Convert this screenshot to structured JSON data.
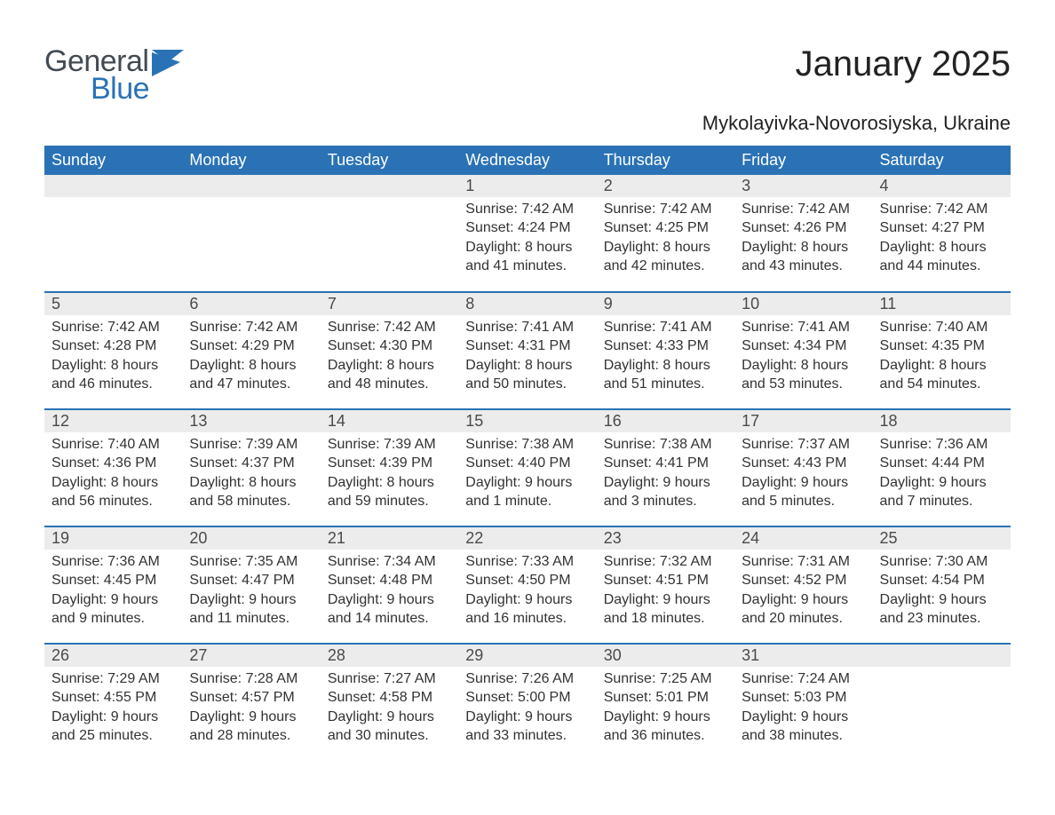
{
  "logo": {
    "word1": "General",
    "word2": "Blue"
  },
  "title": "January 2025",
  "subtitle": "Mykolayivka-Novorosiyska, Ukraine",
  "colors": {
    "header_bg": "#2a72b5",
    "header_text": "#ffffff",
    "daynum_bg": "#ececec",
    "daynum_text": "#4a4a4a",
    "border": "#2a72b5",
    "body_text": "#323232",
    "logo_gray": "#434b52",
    "logo_blue": "#2a72b5",
    "page_bg": "#ffffff"
  },
  "typography": {
    "title_fontsize": 40,
    "subtitle_fontsize": 22,
    "dayheader_fontsize": 18,
    "daynum_fontsize": 18,
    "body_fontsize": 16
  },
  "day_headers": [
    "Sunday",
    "Monday",
    "Tuesday",
    "Wednesday",
    "Thursday",
    "Friday",
    "Saturday"
  ],
  "weeks": [
    [
      {
        "n": "",
        "sr": "",
        "ss": "",
        "d1": "",
        "d2": ""
      },
      {
        "n": "",
        "sr": "",
        "ss": "",
        "d1": "",
        "d2": ""
      },
      {
        "n": "",
        "sr": "",
        "ss": "",
        "d1": "",
        "d2": ""
      },
      {
        "n": "1",
        "sr": "Sunrise: 7:42 AM",
        "ss": "Sunset: 4:24 PM",
        "d1": "Daylight: 8 hours",
        "d2": "and 41 minutes."
      },
      {
        "n": "2",
        "sr": "Sunrise: 7:42 AM",
        "ss": "Sunset: 4:25 PM",
        "d1": "Daylight: 8 hours",
        "d2": "and 42 minutes."
      },
      {
        "n": "3",
        "sr": "Sunrise: 7:42 AM",
        "ss": "Sunset: 4:26 PM",
        "d1": "Daylight: 8 hours",
        "d2": "and 43 minutes."
      },
      {
        "n": "4",
        "sr": "Sunrise: 7:42 AM",
        "ss": "Sunset: 4:27 PM",
        "d1": "Daylight: 8 hours",
        "d2": "and 44 minutes."
      }
    ],
    [
      {
        "n": "5",
        "sr": "Sunrise: 7:42 AM",
        "ss": "Sunset: 4:28 PM",
        "d1": "Daylight: 8 hours",
        "d2": "and 46 minutes."
      },
      {
        "n": "6",
        "sr": "Sunrise: 7:42 AM",
        "ss": "Sunset: 4:29 PM",
        "d1": "Daylight: 8 hours",
        "d2": "and 47 minutes."
      },
      {
        "n": "7",
        "sr": "Sunrise: 7:42 AM",
        "ss": "Sunset: 4:30 PM",
        "d1": "Daylight: 8 hours",
        "d2": "and 48 minutes."
      },
      {
        "n": "8",
        "sr": "Sunrise: 7:41 AM",
        "ss": "Sunset: 4:31 PM",
        "d1": "Daylight: 8 hours",
        "d2": "and 50 minutes."
      },
      {
        "n": "9",
        "sr": "Sunrise: 7:41 AM",
        "ss": "Sunset: 4:33 PM",
        "d1": "Daylight: 8 hours",
        "d2": "and 51 minutes."
      },
      {
        "n": "10",
        "sr": "Sunrise: 7:41 AM",
        "ss": "Sunset: 4:34 PM",
        "d1": "Daylight: 8 hours",
        "d2": "and 53 minutes."
      },
      {
        "n": "11",
        "sr": "Sunrise: 7:40 AM",
        "ss": "Sunset: 4:35 PM",
        "d1": "Daylight: 8 hours",
        "d2": "and 54 minutes."
      }
    ],
    [
      {
        "n": "12",
        "sr": "Sunrise: 7:40 AM",
        "ss": "Sunset: 4:36 PM",
        "d1": "Daylight: 8 hours",
        "d2": "and 56 minutes."
      },
      {
        "n": "13",
        "sr": "Sunrise: 7:39 AM",
        "ss": "Sunset: 4:37 PM",
        "d1": "Daylight: 8 hours",
        "d2": "and 58 minutes."
      },
      {
        "n": "14",
        "sr": "Sunrise: 7:39 AM",
        "ss": "Sunset: 4:39 PM",
        "d1": "Daylight: 8 hours",
        "d2": "and 59 minutes."
      },
      {
        "n": "15",
        "sr": "Sunrise: 7:38 AM",
        "ss": "Sunset: 4:40 PM",
        "d1": "Daylight: 9 hours",
        "d2": "and 1 minute."
      },
      {
        "n": "16",
        "sr": "Sunrise: 7:38 AM",
        "ss": "Sunset: 4:41 PM",
        "d1": "Daylight: 9 hours",
        "d2": "and 3 minutes."
      },
      {
        "n": "17",
        "sr": "Sunrise: 7:37 AM",
        "ss": "Sunset: 4:43 PM",
        "d1": "Daylight: 9 hours",
        "d2": "and 5 minutes."
      },
      {
        "n": "18",
        "sr": "Sunrise: 7:36 AM",
        "ss": "Sunset: 4:44 PM",
        "d1": "Daylight: 9 hours",
        "d2": "and 7 minutes."
      }
    ],
    [
      {
        "n": "19",
        "sr": "Sunrise: 7:36 AM",
        "ss": "Sunset: 4:45 PM",
        "d1": "Daylight: 9 hours",
        "d2": "and 9 minutes."
      },
      {
        "n": "20",
        "sr": "Sunrise: 7:35 AM",
        "ss": "Sunset: 4:47 PM",
        "d1": "Daylight: 9 hours",
        "d2": "and 11 minutes."
      },
      {
        "n": "21",
        "sr": "Sunrise: 7:34 AM",
        "ss": "Sunset: 4:48 PM",
        "d1": "Daylight: 9 hours",
        "d2": "and 14 minutes."
      },
      {
        "n": "22",
        "sr": "Sunrise: 7:33 AM",
        "ss": "Sunset: 4:50 PM",
        "d1": "Daylight: 9 hours",
        "d2": "and 16 minutes."
      },
      {
        "n": "23",
        "sr": "Sunrise: 7:32 AM",
        "ss": "Sunset: 4:51 PM",
        "d1": "Daylight: 9 hours",
        "d2": "and 18 minutes."
      },
      {
        "n": "24",
        "sr": "Sunrise: 7:31 AM",
        "ss": "Sunset: 4:52 PM",
        "d1": "Daylight: 9 hours",
        "d2": "and 20 minutes."
      },
      {
        "n": "25",
        "sr": "Sunrise: 7:30 AM",
        "ss": "Sunset: 4:54 PM",
        "d1": "Daylight: 9 hours",
        "d2": "and 23 minutes."
      }
    ],
    [
      {
        "n": "26",
        "sr": "Sunrise: 7:29 AM",
        "ss": "Sunset: 4:55 PM",
        "d1": "Daylight: 9 hours",
        "d2": "and 25 minutes."
      },
      {
        "n": "27",
        "sr": "Sunrise: 7:28 AM",
        "ss": "Sunset: 4:57 PM",
        "d1": "Daylight: 9 hours",
        "d2": "and 28 minutes."
      },
      {
        "n": "28",
        "sr": "Sunrise: 7:27 AM",
        "ss": "Sunset: 4:58 PM",
        "d1": "Daylight: 9 hours",
        "d2": "and 30 minutes."
      },
      {
        "n": "29",
        "sr": "Sunrise: 7:26 AM",
        "ss": "Sunset: 5:00 PM",
        "d1": "Daylight: 9 hours",
        "d2": "and 33 minutes."
      },
      {
        "n": "30",
        "sr": "Sunrise: 7:25 AM",
        "ss": "Sunset: 5:01 PM",
        "d1": "Daylight: 9 hours",
        "d2": "and 36 minutes."
      },
      {
        "n": "31",
        "sr": "Sunrise: 7:24 AM",
        "ss": "Sunset: 5:03 PM",
        "d1": "Daylight: 9 hours",
        "d2": "and 38 minutes."
      },
      {
        "n": "",
        "sr": "",
        "ss": "",
        "d1": "",
        "d2": ""
      }
    ]
  ]
}
